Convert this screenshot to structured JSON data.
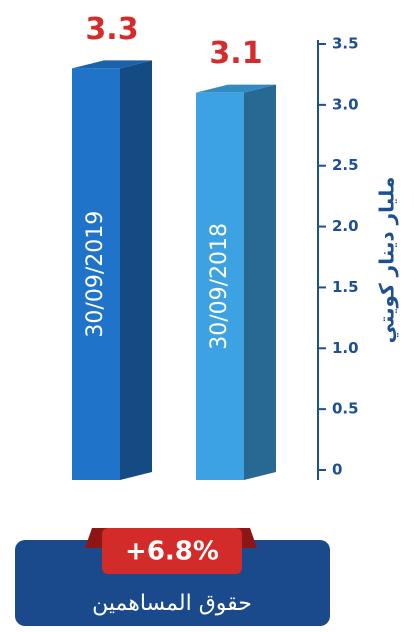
{
  "chart_data": {
    "type": "bar",
    "y_label": "مليار دينار كويتي",
    "categories": [
      "30/09/2019",
      "30/09/2018"
    ],
    "values": [
      3.3,
      3.1
    ],
    "colors": [
      "#1f74c9",
      "#3ca2e2"
    ],
    "ylim": [
      0,
      3.5
    ],
    "yticks": [
      0,
      0.5,
      {
        "value": 1,
        "label": "1.0"
      },
      1.5,
      {
        "value": 2,
        "label": "2.0"
      },
      2.5,
      {
        "value": 3,
        "label": "3.0"
      },
      3.5
    ],
    "badge": "+6.8%",
    "subtitle": "حقوق المساهمين"
  }
}
